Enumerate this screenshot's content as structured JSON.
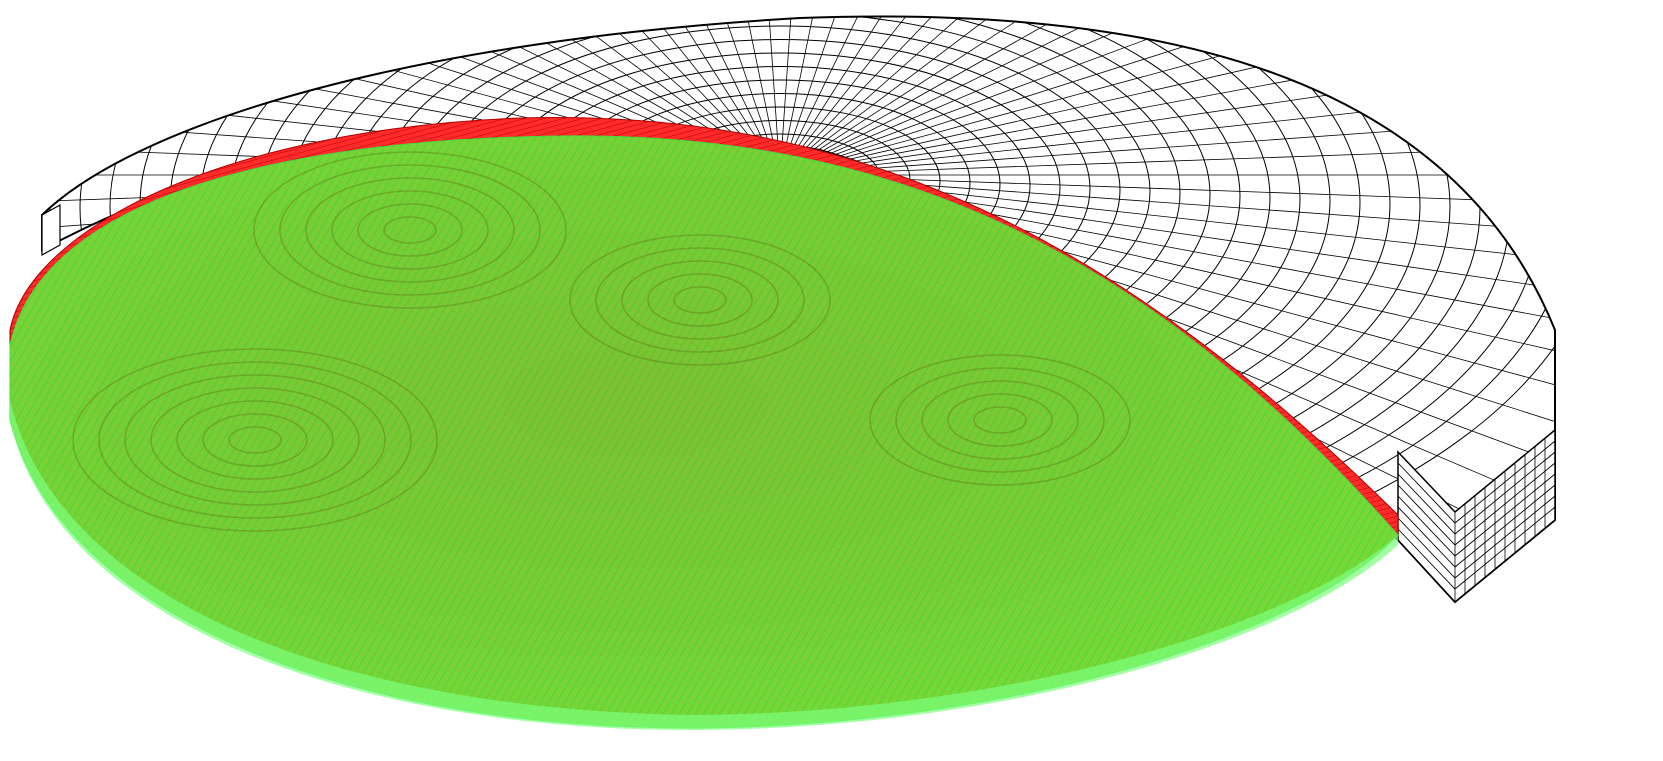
{
  "figure": {
    "type": "3d-mesh-render",
    "background_color": "#ffffff",
    "parts": [
      {
        "name": "coarse-shell-mesh",
        "fill_color": "#ffffff",
        "line_color": "#000000",
        "shape": "dome-cap-with-rim"
      },
      {
        "name": "red-rim-band",
        "fill_color": "#ff2020",
        "line_color": "#b00000",
        "shape": "annular-band"
      },
      {
        "name": "green-fine-mesh",
        "fill_color": "#5fd02a",
        "line_color": "#2fe02f",
        "shape": "elliptical-disc"
      }
    ]
  }
}
